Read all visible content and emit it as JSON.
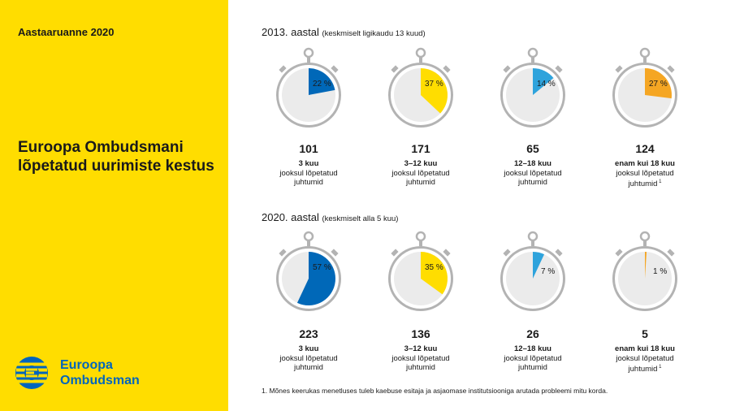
{
  "sidebar": {
    "report_label": "Aastaaruanne 2020",
    "title": "Euroopa Ombudsmani lõpetatud uurimiste kestus",
    "logo_line1": "Euroopa",
    "logo_line2": "Ombudsman"
  },
  "colors": {
    "blue": "#0068b8",
    "yellow": "#ffdd00",
    "lightblue": "#2ea3dc",
    "orange": "#f5a623",
    "dial": "#ebebeb",
    "frame": "#b3b3b3"
  },
  "sections": [
    {
      "title": "2013. aastal",
      "note": "(keskmiselt ligikaudu 13 kuud)",
      "items": [
        {
          "percent": 22,
          "pct_label": "22 %",
          "count": "101",
          "range": "3 kuu",
          "desc1": "jooksul lõpetatud",
          "desc2": "juhtumid",
          "footnote_ref": "",
          "color": "blue",
          "label_inside": true
        },
        {
          "percent": 37,
          "pct_label": "37 %",
          "count": "171",
          "range": "3–12 kuu",
          "desc1": "jooksul lõpetatud",
          "desc2": "juhtumid",
          "footnote_ref": "",
          "color": "yellow",
          "label_inside": true
        },
        {
          "percent": 14,
          "pct_label": "14 %",
          "count": "65",
          "range": "12–18 kuu",
          "desc1": "jooksul lõpetatud",
          "desc2": "juhtumid",
          "footnote_ref": "",
          "color": "lightblue",
          "label_inside": true
        },
        {
          "percent": 27,
          "pct_label": "27 %",
          "count": "124",
          "range": "enam kui 18 kuu",
          "desc1": "jooksul lõpetatud",
          "desc2": "juhtumid",
          "footnote_ref": "1",
          "color": "orange",
          "label_inside": true
        }
      ]
    },
    {
      "title": "2020. aastal",
      "note": "(keskmiselt alla 5 kuu)",
      "items": [
        {
          "percent": 57,
          "pct_label": "57 %",
          "count": "223",
          "range": "3 kuu",
          "desc1": "jooksul lõpetatud",
          "desc2": "juhtumid",
          "footnote_ref": "",
          "color": "blue",
          "label_inside": true
        },
        {
          "percent": 35,
          "pct_label": "35 %",
          "count": "136",
          "range": "3–12 kuu",
          "desc1": "jooksul lõpetatud",
          "desc2": "juhtumid",
          "footnote_ref": "",
          "color": "yellow",
          "label_inside": true
        },
        {
          "percent": 7,
          "pct_label": "7 %",
          "count": "26",
          "range": "12–18 kuu",
          "desc1": "jooksul lõpetatud",
          "desc2": "juhtumid",
          "footnote_ref": "",
          "color": "lightblue",
          "label_inside": false
        },
        {
          "percent": 1,
          "pct_label": "1 %",
          "count": "5",
          "range": "enam kui 18 kuu",
          "desc1": "jooksul lõpetatud",
          "desc2": "juhtumid",
          "footnote_ref": "1",
          "color": "orange",
          "label_inside": false
        }
      ]
    }
  ],
  "footnote": "1. Mõnes keerukas menetluses tuleb kaebuse esitaja ja asjaomase institutsiooniga arutada probleemi mitu korda."
}
